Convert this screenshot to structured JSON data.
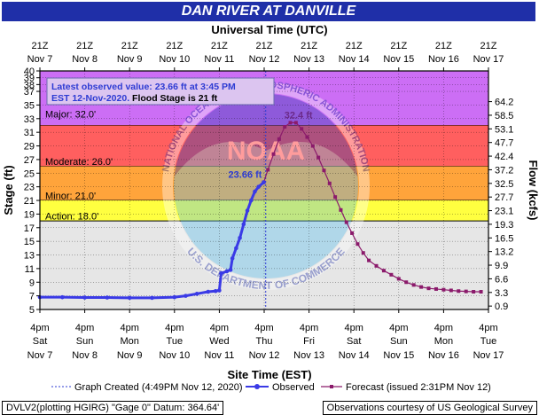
{
  "title": "DAN RIVER AT DANVILLE",
  "top_axis_title": "Universal Time (UTC)",
  "x_axis_title": "Site Time (EST)",
  "y_left_title": "Stage (ft)",
  "y_right_title": "Flow (kcfs)",
  "info_box": {
    "line1": "Latest observed value: 23.66 ft at 3:45 PM",
    "line2_date": "EST 12-Nov-2020.",
    "line2_flood": " Flood Stage is 21 ft"
  },
  "legend": {
    "created": "Graph Created (4:49PM Nov 12, 2020)",
    "observed": "Observed",
    "forecast": "Forecast (issued 2:31PM Nov 12)"
  },
  "footer_left": "DVLV2(plotting HGIRG) \"Gage 0\" Datum: 364.64'",
  "footer_right": "Observations courtesy of US Geological Survey",
  "watermark": {
    "noaa": "NOAA",
    "ring_top": "NATIONAL OCEANIC AND ATMOSPHERIC ADMINISTRATION",
    "ring_bottom": "U.S. DEPARTMENT OF COMMERCE"
  },
  "colors": {
    "title_bg": "#1f2fa8",
    "plot_bg": "#e6e6e6",
    "major": "#cc6ef5",
    "moderate": "#ff5f5f",
    "minor": "#ffa43b",
    "action": "#ffff40",
    "observed": "#3a3ae6",
    "forecast": "#8b1a6b",
    "label_blue": "#2d3bd3",
    "label_purple": "#6b2a8a"
  },
  "chart_data": {
    "type": "line",
    "title": "DAN RIVER AT DANVILLE",
    "xlabel": "Site Time (EST)",
    "ylabel": "Stage (ft)",
    "y2label": "Flow (kcfs)",
    "ylim": [
      5,
      40
    ],
    "xlim": [
      "2020-11-07T16:00",
      "2020-11-17T16:00"
    ],
    "x_ticks_bottom": [
      {
        "time": "4pm",
        "day": "Sat",
        "date": "Nov 7"
      },
      {
        "time": "4pm",
        "day": "Sun",
        "date": "Nov 8"
      },
      {
        "time": "4pm",
        "day": "Mon",
        "date": "Nov 9"
      },
      {
        "time": "4pm",
        "day": "Tue",
        "date": "Nov 10"
      },
      {
        "time": "4pm",
        "day": "Wed",
        "date": "Nov 11"
      },
      {
        "time": "4pm",
        "day": "Thu",
        "date": "Nov 12"
      },
      {
        "time": "4pm",
        "day": "Fri",
        "date": "Nov 13"
      },
      {
        "time": "4pm",
        "day": "Sat",
        "date": "Nov 14"
      },
      {
        "time": "4pm",
        "day": "Sun",
        "date": "Nov 15"
      },
      {
        "time": "4pm",
        "day": "Mon",
        "date": "Nov 16"
      },
      {
        "time": "4pm",
        "day": "Tue",
        "date": "Nov 17"
      }
    ],
    "x_ticks_top": [
      {
        "time": "21Z",
        "date": "Nov 7"
      },
      {
        "time": "21Z",
        "date": "Nov 8"
      },
      {
        "time": "21Z",
        "date": "Nov 9"
      },
      {
        "time": "21Z",
        "date": "Nov 10"
      },
      {
        "time": "21Z",
        "date": "Nov 11"
      },
      {
        "time": "21Z",
        "date": "Nov 12"
      },
      {
        "time": "21Z",
        "date": "Nov 13"
      },
      {
        "time": "21Z",
        "date": "Nov 14"
      },
      {
        "time": "21Z",
        "date": "Nov 15"
      },
      {
        "time": "21Z",
        "date": "Nov 16"
      },
      {
        "time": "21Z",
        "date": "Nov 17"
      }
    ],
    "y_ticks_left": [
      5,
      7,
      9,
      11,
      13,
      15,
      17,
      19,
      21,
      23,
      25,
      27,
      29,
      31,
      33,
      35,
      37,
      38,
      39,
      40
    ],
    "y_ticks_right": [
      {
        "stage": 5.5,
        "label": "0.9"
      },
      {
        "stage": 7.5,
        "label": "3.3"
      },
      {
        "stage": 9.5,
        "label": "6.6"
      },
      {
        "stage": 11.5,
        "label": "9.9"
      },
      {
        "stage": 13.5,
        "label": "13.2"
      },
      {
        "stage": 15.5,
        "label": "16.5"
      },
      {
        "stage": 17.5,
        "label": "19.3"
      },
      {
        "stage": 19.5,
        "label": "23.1"
      },
      {
        "stage": 21.5,
        "label": "27.7"
      },
      {
        "stage": 23.5,
        "label": "32.5"
      },
      {
        "stage": 25.5,
        "label": "37.2"
      },
      {
        "stage": 27.5,
        "label": "42.4"
      },
      {
        "stage": 29.5,
        "label": "47.7"
      },
      {
        "stage": 31.5,
        "label": "53.1"
      },
      {
        "stage": 33.5,
        "label": "58.5"
      },
      {
        "stage": 35.5,
        "label": "64.2"
      }
    ],
    "flood_categories": [
      {
        "name": "Major",
        "label": "Major: 32.0'",
        "from": 32,
        "to": 40
      },
      {
        "name": "Moderate",
        "label": "Moderate: 26.0'",
        "from": 26,
        "to": 32
      },
      {
        "name": "Minor",
        "label": "Minor: 21.0'",
        "from": 21,
        "to": 26
      },
      {
        "name": "Action",
        "label": "Action: 18.0'",
        "from": 18,
        "to": 21
      }
    ],
    "graph_created": "2020-11-12T16:49",
    "series": [
      {
        "name": "Observed",
        "x": [
          "2020-11-07T16:00",
          "2020-11-08T04:00",
          "2020-11-08T16:00",
          "2020-11-09T04:00",
          "2020-11-09T16:00",
          "2020-11-10T04:00",
          "2020-11-10T16:00",
          "2020-11-10T22:00",
          "2020-11-11T04:00",
          "2020-11-11T10:00",
          "2020-11-11T14:00",
          "2020-11-11T16:00",
          "2020-11-11T17:00",
          "2020-11-11T20:00",
          "2020-11-11T22:00",
          "2020-11-11T23:00",
          "2020-11-12T01:00",
          "2020-11-12T03:00",
          "2020-11-12T05:00",
          "2020-11-12T07:00",
          "2020-11-12T09:00",
          "2020-11-12T11:00",
          "2020-11-12T13:00",
          "2020-11-12T15:45"
        ],
        "y": [
          6.8,
          6.8,
          6.75,
          6.75,
          6.7,
          6.7,
          6.8,
          7.0,
          7.3,
          7.6,
          7.7,
          7.8,
          10.3,
          10.6,
          10.8,
          12.5,
          14.0,
          15.5,
          17.5,
          19.5,
          21.0,
          22.3,
          23.0,
          23.66
        ]
      },
      {
        "name": "Forecast",
        "x": [
          "2020-11-12T15:45",
          "2020-11-12T18:00",
          "2020-11-12T21:00",
          "2020-11-13T00:00",
          "2020-11-13T03:00",
          "2020-11-13T06:00",
          "2020-11-13T09:00",
          "2020-11-13T12:00",
          "2020-11-13T15:00",
          "2020-11-13T18:00",
          "2020-11-13T21:00",
          "2020-11-14T00:00",
          "2020-11-14T03:00",
          "2020-11-14T06:00",
          "2020-11-14T09:00",
          "2020-11-14T12:00",
          "2020-11-14T15:00",
          "2020-11-14T18:00",
          "2020-11-14T21:00",
          "2020-11-15T00:00",
          "2020-11-15T04:00",
          "2020-11-15T08:00",
          "2020-11-15T12:00",
          "2020-11-15T16:00",
          "2020-11-15T20:00",
          "2020-11-16T00:00",
          "2020-11-16T04:00",
          "2020-11-16T08:00",
          "2020-11-16T12:00",
          "2020-11-16T16:00",
          "2020-11-16T20:00",
          "2020-11-17T00:00",
          "2020-11-17T04:00",
          "2020-11-17T08:00",
          "2020-11-17T12:00"
        ],
        "y": [
          23.66,
          25.5,
          27.8,
          30.0,
          31.8,
          32.4,
          32.4,
          31.5,
          30.3,
          29.0,
          27.3,
          25.4,
          23.5,
          21.5,
          19.6,
          17.8,
          16.2,
          14.6,
          13.3,
          12.2,
          11.4,
          10.7,
          10.1,
          9.5,
          9.0,
          8.6,
          8.3,
          8.1,
          8.0,
          7.9,
          7.8,
          7.7,
          7.65,
          7.6,
          7.6
        ]
      }
    ],
    "annotations": [
      {
        "text": "23.66 ft",
        "x": "2020-11-12T15:45",
        "y": 23.66,
        "series": "Observed"
      },
      {
        "text": "32.4 ft",
        "x": "2020-11-13T07:30",
        "y": 32.4,
        "series": "Forecast"
      }
    ]
  }
}
